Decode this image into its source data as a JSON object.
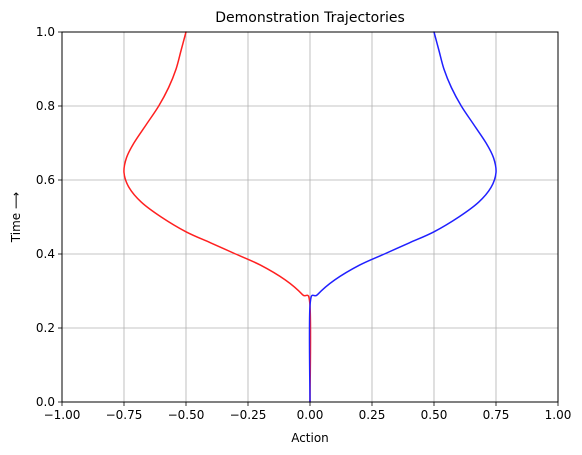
{
  "chart_data": {
    "type": "line",
    "title": "Demonstration Trajectories",
    "xlabel": "Action",
    "ylabel": "Time ⟶",
    "xlim": [
      -1.0,
      1.0
    ],
    "ylim": [
      0.0,
      1.0
    ],
    "grid": true,
    "x_ticks": [
      "−1.00",
      "−0.75",
      "−0.50",
      "−0.25",
      "0.00",
      "0.25",
      "0.50",
      "0.75",
      "1.00"
    ],
    "y_ticks": [
      "0.0",
      "0.2",
      "0.4",
      "0.6",
      "0.8",
      "1.0"
    ],
    "series": [
      {
        "color": "#ff2020",
        "points": [
          [
            0.0,
            0.0
          ],
          [
            0.0,
            0.26
          ],
          [
            -0.03,
            0.29
          ],
          [
            -0.1,
            0.33
          ],
          [
            -0.2,
            0.37
          ],
          [
            -0.3,
            0.4
          ],
          [
            -0.4,
            0.43
          ],
          [
            -0.5,
            0.46
          ],
          [
            -0.6,
            0.5
          ],
          [
            -0.68,
            0.54
          ],
          [
            -0.73,
            0.58
          ],
          [
            -0.75,
            0.62
          ],
          [
            -0.74,
            0.66
          ],
          [
            -0.71,
            0.7
          ],
          [
            -0.66,
            0.75
          ],
          [
            -0.61,
            0.8
          ],
          [
            -0.57,
            0.85
          ],
          [
            -0.54,
            0.9
          ],
          [
            -0.52,
            0.95
          ],
          [
            -0.5,
            1.0
          ]
        ]
      },
      {
        "color": "#2020ff",
        "points": [
          [
            0.0,
            0.0
          ],
          [
            0.0,
            0.26
          ],
          [
            0.03,
            0.29
          ],
          [
            0.1,
            0.33
          ],
          [
            0.2,
            0.37
          ],
          [
            0.3,
            0.4
          ],
          [
            0.4,
            0.43
          ],
          [
            0.5,
            0.46
          ],
          [
            0.6,
            0.5
          ],
          [
            0.68,
            0.54
          ],
          [
            0.73,
            0.58
          ],
          [
            0.75,
            0.62
          ],
          [
            0.74,
            0.66
          ],
          [
            0.71,
            0.7
          ],
          [
            0.66,
            0.75
          ],
          [
            0.61,
            0.8
          ],
          [
            0.57,
            0.85
          ],
          [
            0.54,
            0.9
          ],
          [
            0.52,
            0.95
          ],
          [
            0.5,
            1.0
          ]
        ]
      }
    ]
  }
}
